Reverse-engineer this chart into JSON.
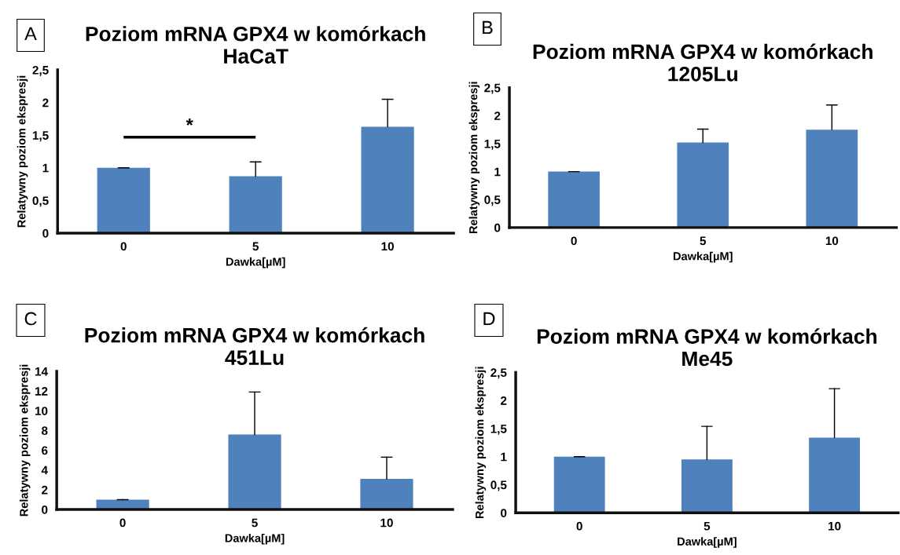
{
  "chart_data": [
    {
      "type": "bar",
      "title": "Poziom mRNA GPX4 w komórkach\nHaCaT",
      "xlabel": "Dawka[µM]",
      "ylabel": "Relatywny poziom ekspresji",
      "categories": [
        "0",
        "5",
        "10"
      ],
      "series": [
        {
          "color": "#4f81bd",
          "values": [
            1.0,
            0.87,
            1.63
          ],
          "errors": [
            [
              1.0,
              1.0
            ],
            [
              0.87,
              1.09
            ],
            [
              1.63,
              2.05
            ]
          ]
        }
      ],
      "ylim": [
        0,
        2.5
      ],
      "yticks": [
        0,
        {
          "value": 0.5,
          "label": "0,5"
        },
        1,
        {
          "value": 1.5,
          "label": "1,5"
        },
        2,
        {
          "value": 2.5,
          "label": "2,5"
        }
      ],
      "grid": false,
      "legend": false,
      "annotations": [
        "A",
        "*"
      ]
    },
    {
      "type": "bar",
      "title": "Poziom mRNA GPX4 w komórkach\n1205Lu",
      "xlabel": "Dawka[µM]",
      "ylabel": "Relatywny poziom ekspresji",
      "categories": [
        "0",
        "5",
        "10"
      ],
      "series": [
        {
          "color": "#4f81bd",
          "values": [
            1.0,
            1.52,
            1.75
          ],
          "errors": [
            [
              1.0,
              1.0
            ],
            [
              1.52,
              1.76
            ],
            [
              1.75,
              2.19
            ]
          ]
        }
      ],
      "ylim": [
        0,
        2.5
      ],
      "yticks": [
        0,
        {
          "value": 0.5,
          "label": "0,5"
        },
        1,
        {
          "value": 1.5,
          "label": "1,5"
        },
        2,
        {
          "value": 2.5,
          "label": "2,5"
        }
      ],
      "grid": false,
      "legend": false,
      "annotations": [
        "B"
      ]
    },
    {
      "type": "bar",
      "title": "Poziom mRNA GPX4 w komórkach\n451Lu",
      "xlabel": "Dawka[µM]",
      "ylabel": "Relatywny poziom ekspresji",
      "categories": [
        "0",
        "5",
        "10"
      ],
      "series": [
        {
          "color": "#4f81bd",
          "values": [
            1.0,
            7.6,
            3.1
          ],
          "errors": [
            [
              1.0,
              1.0
            ],
            [
              7.6,
              11.9
            ],
            [
              3.1,
              5.3
            ]
          ]
        }
      ],
      "ylim": [
        0,
        14
      ],
      "yticks": [
        0,
        2,
        4,
        6,
        8,
        10,
        12,
        14
      ],
      "grid": false,
      "legend": false,
      "annotations": [
        "C"
      ]
    },
    {
      "type": "bar",
      "title": "Poziom mRNA GPX4 w komórkach\nMe45",
      "xlabel": "Dawka[µM]",
      "ylabel": "Relatywny poziom ekspresji",
      "categories": [
        "0",
        "5",
        "10"
      ],
      "series": [
        {
          "color": "#4f81bd",
          "values": [
            1.0,
            0.95,
            1.34
          ],
          "errors": [
            [
              1.0,
              1.0
            ],
            [
              0.95,
              1.54
            ],
            [
              1.34,
              2.21
            ]
          ]
        }
      ],
      "ylim": [
        0,
        2.5
      ],
      "yticks": [
        0,
        {
          "value": 0.5,
          "label": "0,5"
        },
        1,
        {
          "value": 1.5,
          "label": "1,5"
        },
        2,
        {
          "value": 2.5,
          "label": "2,5"
        }
      ],
      "grid": false,
      "legend": false,
      "annotations": [
        "D"
      ]
    }
  ]
}
